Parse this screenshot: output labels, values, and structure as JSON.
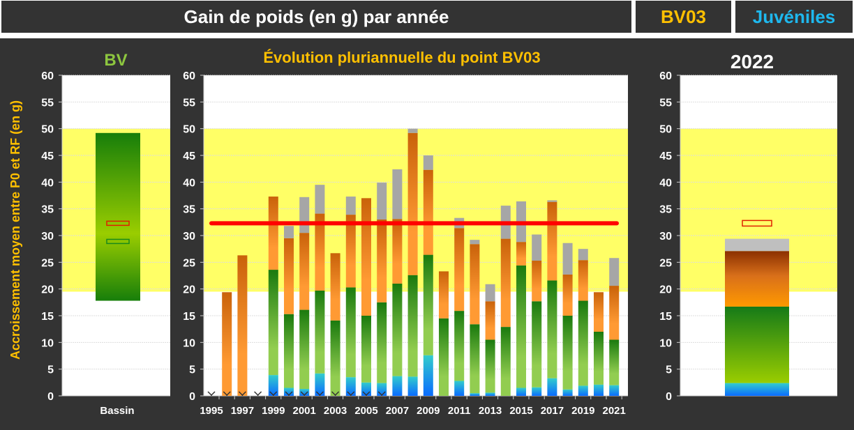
{
  "header": {
    "title": "Gain de poids (en g) par année",
    "site": "BV03",
    "category": "Juvéniles"
  },
  "colors": {
    "site": "#FFC000",
    "category": "#1EB8EE",
    "bv": "#8DC63F",
    "ylabel": "#FFC000",
    "band": "#FFFF66",
    "line": "#FF0000",
    "grey": "#A6A6A6"
  },
  "ylabel": "Accroissement  moyen entre P0 et RF (en g)",
  "chart_data": [
    {
      "type": "bar",
      "title": "BV",
      "categories": [
        "Bassin"
      ],
      "ylim": [
        0,
        60
      ],
      "yticks": [
        0,
        5,
        10,
        15,
        20,
        25,
        30,
        35,
        40,
        45,
        50,
        55,
        60
      ],
      "band": [
        19.5,
        50
      ],
      "range": [
        17.8,
        49.2
      ],
      "markers": [
        {
          "name": "red",
          "value": 32.3
        },
        {
          "name": "green",
          "value": 28.9
        }
      ]
    },
    {
      "type": "bar",
      "stacked": true,
      "title": "Évolution pluriannuelle du point BV03",
      "ylim": [
        0,
        60
      ],
      "yticks": [
        0,
        5,
        10,
        15,
        20,
        25,
        30,
        35,
        40,
        45,
        50,
        55,
        60
      ],
      "band": [
        19.5,
        50
      ],
      "reference_line": 32.3,
      "x": [
        1995,
        1996,
        1997,
        1998,
        1999,
        2000,
        2001,
        2002,
        2003,
        2004,
        2005,
        2006,
        2007,
        2008,
        2009,
        2010,
        2011,
        2012,
        2013,
        2014,
        2015,
        2016,
        2017,
        2018,
        2019,
        2020,
        2021
      ],
      "xtick_labels": [
        "1995",
        "1997",
        "1999",
        "2001",
        "2003",
        "2005",
        "2007",
        "2009",
        "2011",
        "2013",
        "2015",
        "2017",
        "2019",
        "2021"
      ],
      "no_data_marker_years": [
        1995,
        1996,
        1997,
        1998,
        1999,
        2000,
        2001,
        2002,
        2003,
        2004,
        2005,
        2006
      ],
      "series": [
        {
          "name": "blue",
          "cumulative_top": [
            0,
            0,
            0,
            0,
            3.9,
            1.5,
            1.3,
            4.2,
            0,
            3.5,
            2.5,
            2.4,
            3.7,
            3.6,
            7.6,
            0,
            2.8,
            0.5,
            0.6,
            0,
            1.5,
            1.6,
            3.3,
            1.2,
            1.9,
            2.1,
            2.0
          ]
        },
        {
          "name": "green",
          "cumulative_top": [
            0,
            0,
            0,
            0,
            23.6,
            15.3,
            16.1,
            19.7,
            14.1,
            20.3,
            15.0,
            17.5,
            21.0,
            22.6,
            26.4,
            14.5,
            15.9,
            13.4,
            10.5,
            12.9,
            24.4,
            17.7,
            21.6,
            15.0,
            17.8,
            12.0,
            10.5
          ]
        },
        {
          "name": "orange",
          "cumulative_top": [
            0,
            19.4,
            26.3,
            0,
            37.3,
            29.5,
            30.5,
            34.1,
            26.7,
            33.9,
            37.0,
            33.0,
            33.1,
            49.2,
            42.3,
            23.3,
            31.4,
            28.4,
            17.7,
            29.4,
            28.8,
            25.3,
            36.3,
            22.7,
            25.4,
            19.4,
            20.6
          ]
        },
        {
          "name": "grey",
          "cumulative_top": [
            0,
            19.4,
            26.3,
            0,
            37.3,
            31.8,
            37.2,
            39.5,
            26.7,
            37.3,
            37.0,
            39.9,
            42.4,
            50.0,
            45.0,
            23.3,
            33.3,
            29.2,
            20.9,
            35.6,
            36.4,
            30.2,
            36.6,
            28.6,
            27.5,
            19.4,
            25.8
          ]
        }
      ]
    },
    {
      "type": "bar",
      "stacked": true,
      "title": "2022",
      "ylim": [
        0,
        60
      ],
      "yticks": [
        0,
        5,
        10,
        15,
        20,
        25,
        30,
        35,
        40,
        45,
        50,
        55,
        60
      ],
      "band": [
        19.5,
        50
      ],
      "marker": 32.3,
      "series": [
        {
          "name": "blue",
          "cumulative_top": 2.4
        },
        {
          "name": "green",
          "cumulative_top": 16.7
        },
        {
          "name": "orange",
          "cumulative_top": 27.1
        },
        {
          "name": "grey",
          "cumulative_top": 29.4
        }
      ]
    }
  ]
}
